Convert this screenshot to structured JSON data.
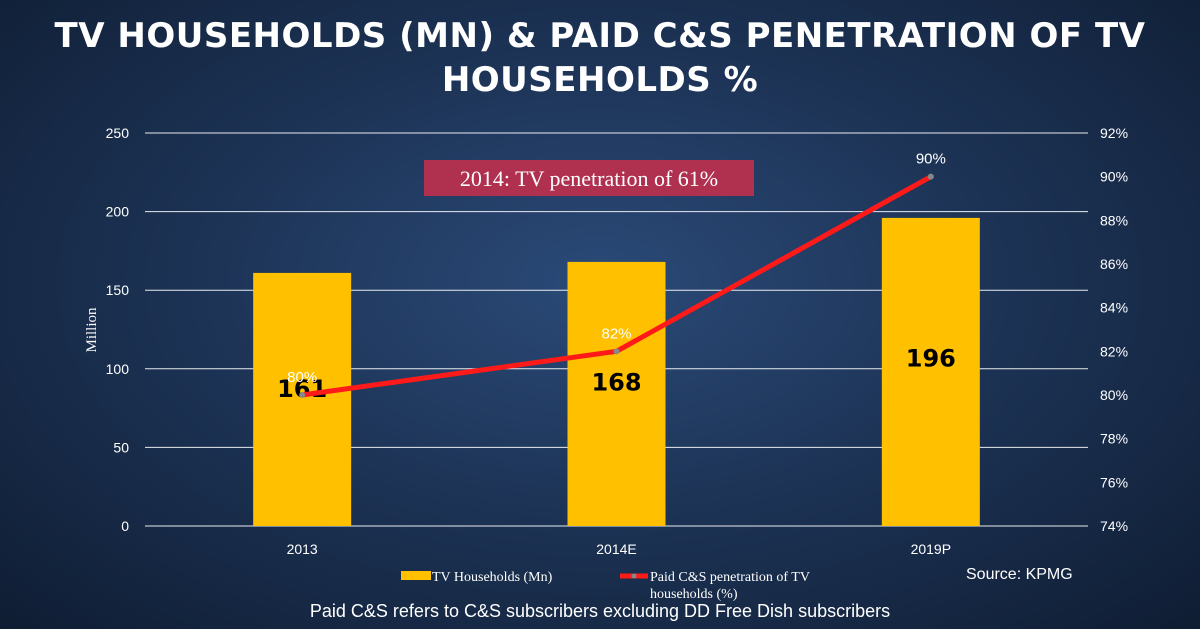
{
  "title": "TV HOUSEHOLDS (MN) & PAID C&S PENETRATION OF TV HOUSEHOLDS %",
  "chart_data": {
    "type": "bar+line",
    "categories": [
      "2013",
      "2014E",
      "2019P"
    ],
    "series": [
      {
        "name": "TV Households (Mn)",
        "type": "bar",
        "axis": "left",
        "values": [
          161,
          168,
          196
        ],
        "labels": [
          "161",
          "168",
          "196"
        ],
        "color": "#ffc000"
      },
      {
        "name": "Paid C&S penetration of TV households (%)",
        "type": "line",
        "axis": "right",
        "values": [
          80,
          82,
          90
        ],
        "labels": [
          "80%",
          "82%",
          "90%"
        ],
        "color": "#ff1a1a"
      }
    ],
    "left_axis": {
      "label": "Million",
      "min": 0,
      "max": 250,
      "ticks": [
        "0",
        "50",
        "100",
        "150",
        "200",
        "250"
      ]
    },
    "right_axis": {
      "min": 74,
      "max": 92,
      "ticks": [
        "74%",
        "76%",
        "78%",
        "80%",
        "82%",
        "84%",
        "86%",
        "88%",
        "90%",
        "92%"
      ]
    },
    "legend": [
      "TV Households (Mn)",
      "Paid C&S penetration of TV households (%)"
    ],
    "legend_position": "bottom",
    "grid": true
  },
  "annotation": "2014: TV penetration of 61%",
  "legend_line_label_1": "Paid C&S penetration of TV",
  "legend_line_label_2": "households (%)",
  "source": "Source: KPMG",
  "footnote": "Paid C&S refers to C&S subscribers excluding DD Free Dish subscribers",
  "colors": {
    "bar": "#ffc000",
    "line": "#ff1a1a",
    "annotation_bg": "#b03050",
    "background": "#1d3457"
  }
}
